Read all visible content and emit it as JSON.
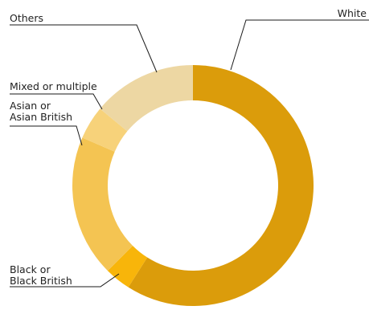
{
  "chart_data": {
    "type": "pie",
    "donut": true,
    "categories": [
      "White",
      "Black or\nBlack British",
      "Asian or\nAsian British",
      "Mixed or multiple",
      "Others"
    ],
    "values": [
      59,
      3.5,
      19,
      4.5,
      14
    ],
    "colors": [
      "#DB9C0B",
      "#F8B50A",
      "#F4C452",
      "#F7D27A",
      "#EDD7A3"
    ],
    "label_lines": [
      [
        "White"
      ],
      [
        "Black or",
        "Black British"
      ],
      [
        "Asian or",
        "Asian British"
      ],
      [
        "Mixed or multiple"
      ],
      [
        "Others"
      ]
    ]
  }
}
